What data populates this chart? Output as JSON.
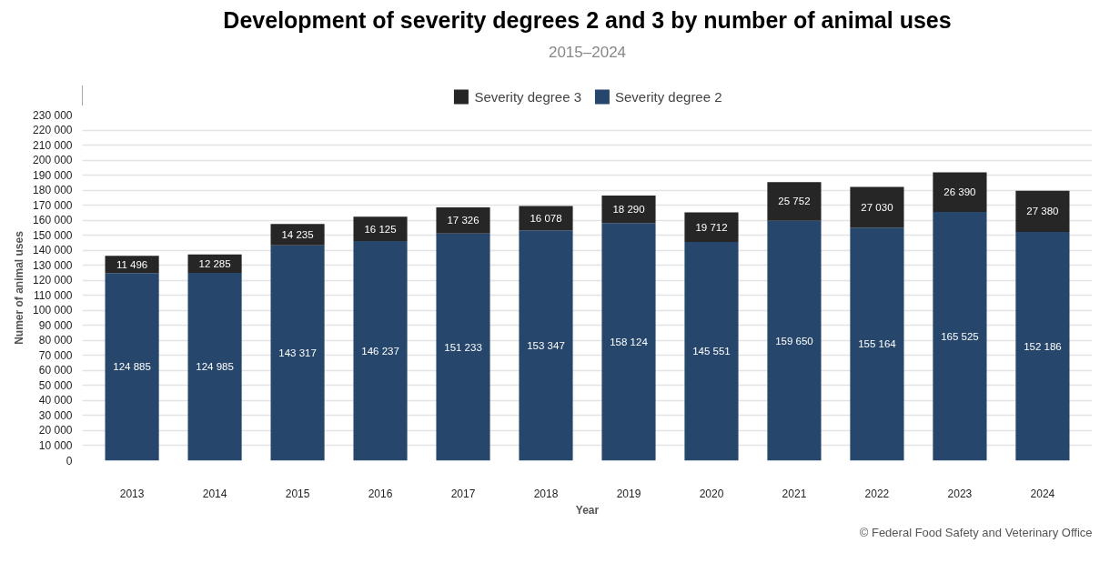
{
  "chart_data": {
    "type": "bar",
    "title": "Development of severity degrees 2 and 3 by number of animal uses",
    "subtitle": "2015–2024",
    "xlabel": "Year",
    "ylabel": "Numer of animal uses",
    "categories": [
      "2013",
      "2014",
      "2015",
      "2016",
      "2017",
      "2018",
      "2019",
      "2020",
      "2021",
      "2022",
      "2023",
      "2024"
    ],
    "stacked": true,
    "series": [
      {
        "name": "Severity degree 2",
        "color": "#26476b",
        "values": [
          124885,
          124985,
          143317,
          146237,
          151233,
          153347,
          158124,
          145551,
          159650,
          155164,
          165525,
          152186
        ],
        "value_labels": [
          "124 885",
          "124 985",
          "143 317",
          "146 237",
          "151 233",
          "153 347",
          "158 124",
          "145 551",
          "159 650",
          "155 164",
          "165 525",
          "152 186"
        ]
      },
      {
        "name": "Severity degree 3",
        "color": "#262626",
        "values": [
          11496,
          12285,
          14235,
          16125,
          17326,
          16078,
          18290,
          19712,
          25752,
          27030,
          26390,
          27380
        ],
        "value_labels": [
          "11 496",
          "12 285",
          "14 235",
          "16 125",
          "17 326",
          "16 078",
          "18 290",
          "19 712",
          "25 752",
          "27 030",
          "26 390",
          "27 380"
        ]
      }
    ],
    "ylim": [
      0,
      230000
    ],
    "yticks": [
      0,
      {
        "value": 10000,
        "label": "10 000"
      },
      {
        "value": 20000,
        "label": "20 000"
      },
      {
        "value": 30000,
        "label": "30 000"
      },
      {
        "value": 40000,
        "label": "40 000"
      },
      {
        "value": 50000,
        "label": "50 000"
      },
      {
        "value": 60000,
        "label": "60 000"
      },
      {
        "value": 70000,
        "label": "70 000"
      },
      {
        "value": 80000,
        "label": "80 000"
      },
      {
        "value": 90000,
        "label": "90 000"
      },
      {
        "value": 100000,
        "label": "100 000"
      },
      {
        "value": 110000,
        "label": "110 000"
      },
      {
        "value": 120000,
        "label": "120 000"
      },
      {
        "value": 130000,
        "label": "130 000"
      },
      {
        "value": 140000,
        "label": "140 000"
      },
      {
        "value": 150000,
        "label": "150 000"
      },
      {
        "value": 160000,
        "label": "160 000"
      },
      {
        "value": 170000,
        "label": "170 000"
      },
      {
        "value": 180000,
        "label": "180 000"
      },
      {
        "value": 190000,
        "label": "190 000"
      },
      {
        "value": 200000,
        "label": "200 000"
      },
      {
        "value": 210000,
        "label": "210 000"
      },
      {
        "value": 220000,
        "label": "220 000"
      },
      {
        "value": 230000,
        "label": "230 000"
      }
    ],
    "grid": "y",
    "legend": "top",
    "annotations": [
      "© Federal Food Safety and Veterinary Office"
    ]
  }
}
